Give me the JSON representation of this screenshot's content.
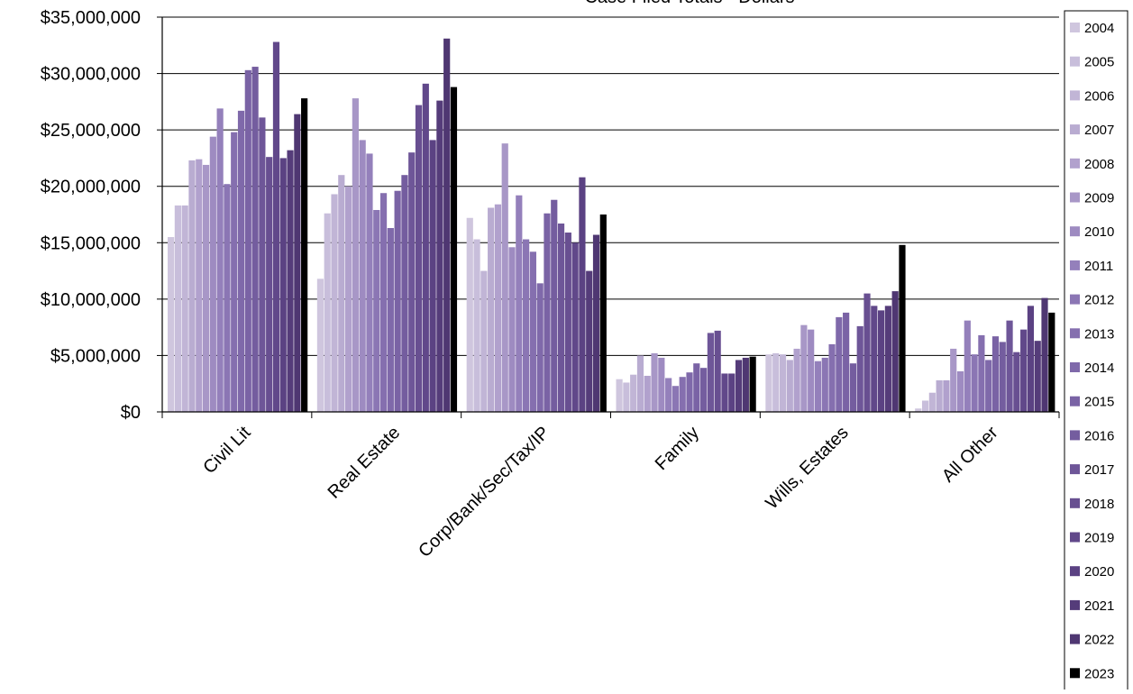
{
  "chart_data": {
    "type": "bar",
    "title": "",
    "xlabel": "",
    "ylabel": "",
    "ylim": [
      0,
      35000000
    ],
    "yticks": [
      0,
      5000000,
      10000000,
      15000000,
      20000000,
      25000000,
      30000000,
      35000000
    ],
    "ytick_labels": [
      "$0",
      "$5,000,000",
      "$10,000,000",
      "$15,000,000",
      "$20,000,000",
      "$25,000,000",
      "$30,000,000",
      "$35,000,000"
    ],
    "grid": "horizontal",
    "legend_position": "right",
    "categories": [
      "Civil Lit",
      "Real Estate",
      "Corp/Bank/Sec/Tax/IP",
      "Family",
      "Wills, Estates",
      "All Other"
    ],
    "series": [
      {
        "name": "2004",
        "color": "#cfc6de",
        "values": [
          15500000,
          11800000,
          17200000,
          2900000,
          5100000,
          300000
        ]
      },
      {
        "name": "2005",
        "color": "#c8bedb",
        "values": [
          18300000,
          17600000,
          15300000,
          2600000,
          5200000,
          1000000
        ]
      },
      {
        "name": "2006",
        "color": "#c1b5d6",
        "values": [
          18300000,
          19300000,
          12500000,
          3300000,
          5100000,
          1700000
        ]
      },
      {
        "name": "2007",
        "color": "#b9acd1",
        "values": [
          22300000,
          21000000,
          18100000,
          5000000,
          4600000,
          2800000
        ]
      },
      {
        "name": "2008",
        "color": "#b1a1cd",
        "values": [
          22400000,
          20000000,
          18400000,
          3200000,
          5600000,
          2800000
        ]
      },
      {
        "name": "2009",
        "color": "#a897c7",
        "values": [
          21900000,
          27800000,
          23800000,
          5200000,
          7700000,
          5600000
        ]
      },
      {
        "name": "2010",
        "color": "#9e8bc1",
        "values": [
          24400000,
          24100000,
          14600000,
          4800000,
          7300000,
          3600000
        ]
      },
      {
        "name": "2011",
        "color": "#9480bb",
        "values": [
          26900000,
          22900000,
          19200000,
          3000000,
          4500000,
          8100000
        ]
      },
      {
        "name": "2012",
        "color": "#8b76b4",
        "values": [
          20200000,
          17900000,
          15300000,
          2300000,
          4800000,
          5100000
        ]
      },
      {
        "name": "2013",
        "color": "#856faf",
        "values": [
          24800000,
          19400000,
          14200000,
          3100000,
          6000000,
          6800000
        ]
      },
      {
        "name": "2014",
        "color": "#7f69aa",
        "values": [
          26700000,
          16300000,
          11400000,
          3500000,
          8400000,
          4600000
        ]
      },
      {
        "name": "2015",
        "color": "#7a63a5",
        "values": [
          30300000,
          19600000,
          17600000,
          4300000,
          8800000,
          6700000
        ]
      },
      {
        "name": "2016",
        "color": "#745d9f",
        "values": [
          30600000,
          21000000,
          18800000,
          3900000,
          4300000,
          6200000
        ]
      },
      {
        "name": "2017",
        "color": "#6e5698",
        "values": [
          26100000,
          23000000,
          16700000,
          7000000,
          7600000,
          8100000
        ]
      },
      {
        "name": "2018",
        "color": "#684f91",
        "values": [
          22600000,
          27200000,
          15900000,
          7200000,
          10500000,
          5300000
        ]
      },
      {
        "name": "2019",
        "color": "#61488a",
        "values": [
          32800000,
          29100000,
          15000000,
          3400000,
          9400000,
          7300000
        ]
      },
      {
        "name": "2020",
        "color": "#5b4283",
        "values": [
          22500000,
          24100000,
          20800000,
          3400000,
          9000000,
          9400000
        ]
      },
      {
        "name": "2021",
        "color": "#553c7a",
        "values": [
          23200000,
          27600000,
          12500000,
          4600000,
          9400000,
          6300000
        ]
      },
      {
        "name": "2022",
        "color": "#4f3772",
        "values": [
          26400000,
          33100000,
          15700000,
          4800000,
          10700000,
          10100000
        ]
      },
      {
        "name": "2023",
        "color": "#000000",
        "values": [
          27800000,
          28800000,
          17500000,
          4900000,
          14800000,
          8800000
        ]
      }
    ]
  },
  "title_partial": "Case Filed Totals - Dollars"
}
